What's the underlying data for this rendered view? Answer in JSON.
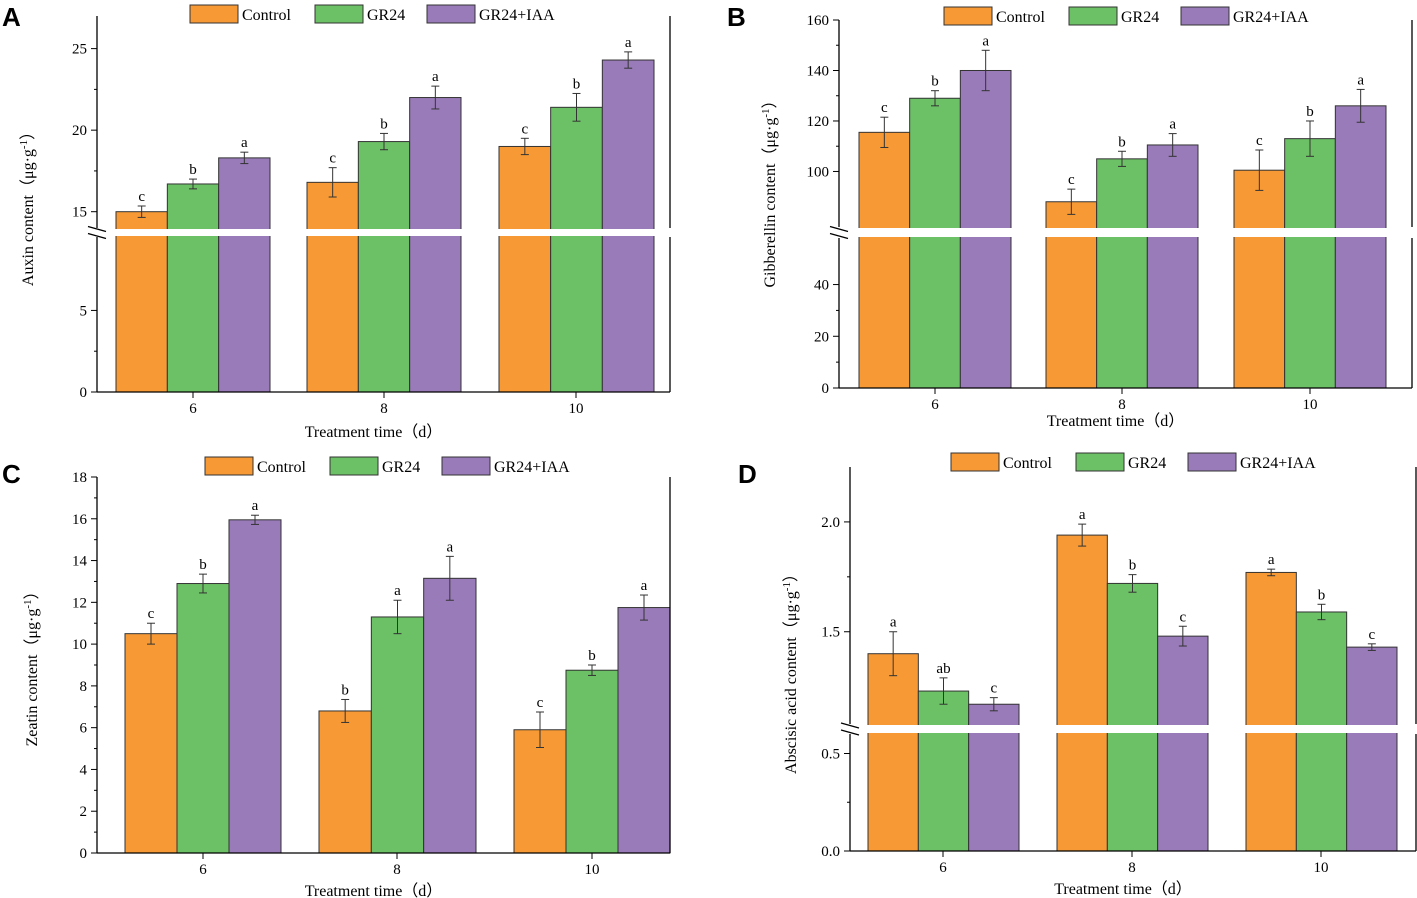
{
  "chart_data": [
    {
      "panel": "A",
      "type": "bar",
      "categories": [
        "6",
        "8",
        "10"
      ],
      "series": [
        {
          "name": "Control",
          "values": [
            15.0,
            16.8,
            19.0
          ],
          "errors": [
            0.35,
            0.9,
            0.5
          ],
          "sig": [
            "c",
            "c",
            "c"
          ],
          "color": "#F79A35"
        },
        {
          "name": "GR24",
          "values": [
            16.7,
            19.3,
            21.4
          ],
          "errors": [
            0.3,
            0.5,
            0.85
          ],
          "sig": [
            "b",
            "b",
            "b"
          ],
          "color": "#6CC066"
        },
        {
          "name": "GR24+IAA",
          "values": [
            18.3,
            22.0,
            24.3
          ],
          "errors": [
            0.35,
            0.7,
            0.5
          ],
          "sig": [
            "a",
            "a",
            "a"
          ],
          "color": "#9A7BB9"
        }
      ],
      "xlabel": "Treatment time（d）",
      "ylabel": "Auxin content（μg·g⁻¹）",
      "ylabel_main": "Auxin content（μg·g",
      "ylabel_sup": "-1",
      "ylabel_tail": "）",
      "axis_break": {
        "lower_range": [
          0,
          9.5
        ],
        "upper_range": [
          14,
          27
        ]
      },
      "lower_ticks": [
        0,
        5
      ],
      "upper_ticks": [
        15,
        20,
        25
      ]
    },
    {
      "panel": "B",
      "type": "bar",
      "categories": [
        "6",
        "8",
        "10"
      ],
      "series": [
        {
          "name": "Control",
          "values": [
            115.5,
            88.0,
            100.5
          ],
          "errors": [
            6.0,
            5.0,
            8.0
          ],
          "sig": [
            "c",
            "c",
            "c"
          ],
          "color": "#F79A35"
        },
        {
          "name": "GR24",
          "values": [
            129.0,
            105.0,
            113.0
          ],
          "errors": [
            3.0,
            3.0,
            7.0
          ],
          "sig": [
            "b",
            "b",
            "b"
          ],
          "color": "#6CC066"
        },
        {
          "name": "GR24+IAA",
          "values": [
            140.0,
            110.5,
            126.0
          ],
          "errors": [
            8.0,
            4.5,
            6.5
          ],
          "sig": [
            "a",
            "a",
            "a"
          ],
          "color": "#9A7BB9"
        }
      ],
      "xlabel": "Treatment time（d）",
      "ylabel": "Gibberellin content（μg·g⁻¹）",
      "ylabel_main": "Gibberellin content（μg·g",
      "ylabel_sup": "-1",
      "ylabel_tail": "）",
      "axis_break": {
        "lower_range": [
          0,
          58
        ],
        "upper_range": [
          78,
          160
        ]
      },
      "lower_ticks": [
        0,
        20,
        40
      ],
      "upper_ticks": [
        100,
        120,
        140,
        160
      ]
    },
    {
      "panel": "C",
      "type": "bar",
      "categories": [
        "6",
        "8",
        "10"
      ],
      "series": [
        {
          "name": "Control",
          "values": [
            10.5,
            6.8,
            5.9
          ],
          "errors": [
            0.5,
            0.55,
            0.85
          ],
          "sig": [
            "c",
            "b",
            "c"
          ],
          "color": "#F79A35"
        },
        {
          "name": "GR24",
          "values": [
            12.9,
            11.3,
            8.75
          ],
          "errors": [
            0.45,
            0.8,
            0.25
          ],
          "sig": [
            "b",
            "a",
            "b"
          ],
          "color": "#6CC066"
        },
        {
          "name": "GR24+IAA",
          "values": [
            15.95,
            13.15,
            11.75
          ],
          "errors": [
            0.22,
            1.05,
            0.6
          ],
          "sig": [
            "a",
            "a",
            "a"
          ],
          "color": "#9A7BB9"
        }
      ],
      "xlabel": "Treatment time（d）",
      "ylabel": "Zeatin content（μg·g⁻¹）",
      "ylabel_main": "Zeatin content（μg·g",
      "ylabel_sup": "-1",
      "ylabel_tail": "）",
      "ylim": [
        0,
        18
      ],
      "ticks": [
        0,
        2,
        4,
        6,
        8,
        10,
        12,
        14,
        16,
        18
      ]
    },
    {
      "panel": "D",
      "type": "bar",
      "categories": [
        "6",
        "8",
        "10"
      ],
      "series": [
        {
          "name": "Control",
          "values": [
            1.4,
            1.94,
            1.77
          ],
          "errors": [
            0.1,
            0.05,
            0.015
          ],
          "sig": [
            "a",
            "a",
            "a"
          ],
          "color": "#F79A35"
        },
        {
          "name": "GR24",
          "values": [
            1.23,
            1.72,
            1.59
          ],
          "errors": [
            0.06,
            0.04,
            0.035
          ],
          "sig": [
            "ab",
            "b",
            "b"
          ],
          "color": "#6CC066"
        },
        {
          "name": "GR24+IAA",
          "values": [
            1.17,
            1.48,
            1.43
          ],
          "errors": [
            0.03,
            0.045,
            0.015
          ],
          "sig": [
            "c",
            "c",
            "c"
          ],
          "color": "#9A7BB9"
        }
      ],
      "xlabel": "Treatment time（d）",
      "ylabel": "Abscisic acid content（μg·g⁻¹）",
      "ylabel_main": "Abscisic acid content（μg·g",
      "ylabel_sup": "-1",
      "ylabel_tail": "）",
      "axis_break": {
        "lower_range": [
          0,
          0.6
        ],
        "upper_range": [
          1.08,
          2.25
        ]
      },
      "lower_ticks": [
        0.0,
        0.5
      ],
      "upper_ticks": [
        1.5,
        2.0
      ]
    }
  ]
}
